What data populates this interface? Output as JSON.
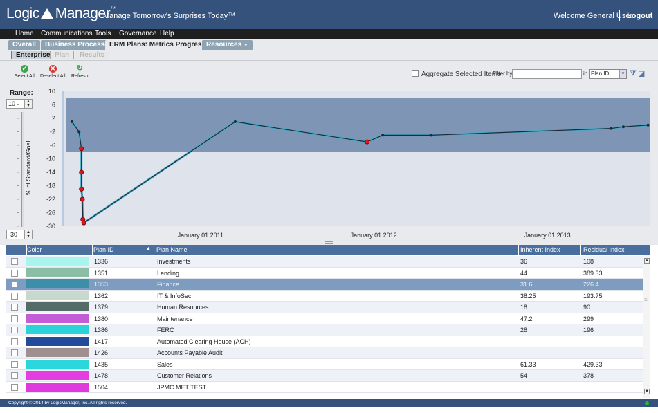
{
  "header": {
    "logo": "Logic",
    "logo_b": "Manager",
    "tm": "™",
    "tagline": "Manage Tomorrow's Surprises Today™",
    "welcome": "Welcome General User",
    "logout": "Logout"
  },
  "menu": [
    "Home",
    "Communications",
    "Tools",
    "Governance",
    "Help"
  ],
  "tabs": [
    "Overall",
    "Business Processes",
    "ERM Plans: Metrics Progress",
    "Resources"
  ],
  "subtabs": [
    "Enterprise",
    "Plan",
    "Results"
  ],
  "toolbar": {
    "select_all": "Select All",
    "deselect_all": "Deselect All",
    "refresh": "Refresh",
    "aggregate": "Aggregate Selected Items",
    "filter_by": "Filter by",
    "filter_value": "",
    "in_label": "in",
    "filter_field": "Plan ID"
  },
  "range": {
    "label": "Range:",
    "max": "10",
    "min": "-30"
  },
  "chart_data": {
    "type": "line",
    "ylabel": "% of Standard/Goal",
    "ylim": [
      -30,
      10
    ],
    "yticks": [
      "10",
      "6",
      "2",
      "-2",
      "-6",
      "-10",
      "-14",
      "-18",
      "-22",
      "-26",
      "-30"
    ],
    "xticks": [
      "January 01 2011",
      "January 01 2012",
      "January 01 2013"
    ],
    "band": {
      "y_from": -8,
      "y_to": 8
    },
    "series": [
      {
        "x": [
          "2010-04-05",
          "2010-04-20",
          "2010-04-25",
          "2010-04-25",
          "2010-04-25",
          "2010-04-27",
          "2010-04-28",
          "2010-04-30",
          "2011-03-15",
          "2011-12-18",
          "2012-01-20",
          "2012-05-01",
          "2013-05-15",
          "2013-06-10",
          "2013-08-01"
        ],
        "values": [
          1,
          -2,
          -7,
          -14,
          -19,
          -22,
          -28,
          -29,
          1,
          -5,
          -3,
          -3,
          -1,
          -0.5,
          0
        ],
        "markers": [
          "n",
          "n",
          "r",
          "r",
          "r",
          "r",
          "r",
          "r",
          "n",
          "r",
          "n",
          "n",
          "n",
          "n",
          "n"
        ]
      }
    ]
  },
  "grid": {
    "columns": [
      "Color",
      "Plan ID",
      "Plan Name",
      "Inherent Index",
      "Residual Index"
    ],
    "rows": [
      {
        "checked": false,
        "color": "#a8f5ee",
        "id": "1336",
        "name": "Investments",
        "inherent": "36",
        "residual": "108"
      },
      {
        "checked": false,
        "color": "#8cbea6",
        "id": "1351",
        "name": "Lending",
        "inherent": "44",
        "residual": "389.33"
      },
      {
        "checked": true,
        "color": "#3d8ea8",
        "id": "1353",
        "name": "Finance",
        "inherent": "31.6",
        "residual": "226.4"
      },
      {
        "checked": false,
        "color": "#c8d8cc",
        "id": "1362",
        "name": "IT  & InfoSec",
        "inherent": "38.25",
        "residual": "193.75"
      },
      {
        "checked": false,
        "color": "#556b67",
        "id": "1379",
        "name": "Human Resources",
        "inherent": "18",
        "residual": "90"
      },
      {
        "checked": false,
        "color": "#c35cd6",
        "id": "1380",
        "name": "Maintenance",
        "inherent": "47.2",
        "residual": "299"
      },
      {
        "checked": false,
        "color": "#29d3d8",
        "id": "1386",
        "name": "FERC",
        "inherent": "28",
        "residual": "196"
      },
      {
        "checked": false,
        "color": "#234b9a",
        "id": "1417",
        "name": "Automated Clearing House (ACH)",
        "inherent": "",
        "residual": ""
      },
      {
        "checked": false,
        "color": "#a08f8f",
        "id": "1426",
        "name": "Accounts Payable Audit",
        "inherent": "",
        "residual": ""
      },
      {
        "checked": false,
        "color": "#2bd6dc",
        "id": "1435",
        "name": "Sales",
        "inherent": "61.33",
        "residual": "429.33"
      },
      {
        "checked": false,
        "color": "#e23ee0",
        "id": "1478",
        "name": "Customer Relations",
        "inherent": "54",
        "residual": "378"
      },
      {
        "checked": false,
        "color": "#e03ade",
        "id": "1504",
        "name": "JPMC MET TEST",
        "inherent": "",
        "residual": ""
      }
    ]
  },
  "footer": "Copyright © 2014 by LogicManager, Inc. All rights reserved."
}
